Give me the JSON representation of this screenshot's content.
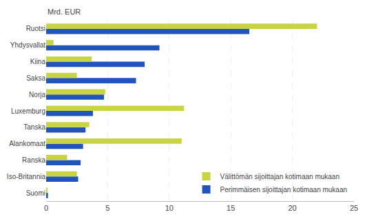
{
  "chart_data": {
    "type": "bar",
    "orientation": "horizontal",
    "ylabel": "Mrd. EUR",
    "categories": [
      "Suomi",
      "Iso-Britannia",
      "Ranska",
      "Alankomaat",
      "Tanska",
      "Luxemburg",
      "Norja",
      "Saksa",
      "Kiina",
      "Yhdysvallat",
      "Ruotsi"
    ],
    "series": [
      {
        "name": "Välittömän sijoittajan kotimaan mukaan",
        "color": "#c8d442",
        "values": [
          0.1,
          2.5,
          1.7,
          11.0,
          3.5,
          11.2,
          4.8,
          2.5,
          3.7,
          0.6,
          22.0
        ]
      },
      {
        "name": "Perimmäisen sijoittajan kotimaan mukaan",
        "color": "#2255bb",
        "values": [
          0.15,
          2.6,
          2.8,
          3.0,
          3.2,
          3.8,
          4.7,
          7.3,
          8.0,
          9.2,
          16.5
        ]
      }
    ],
    "xlim": [
      0,
      25
    ],
    "xticks": [
      0,
      5,
      10,
      15,
      20,
      25
    ],
    "grid": true,
    "legend": "lower right"
  }
}
